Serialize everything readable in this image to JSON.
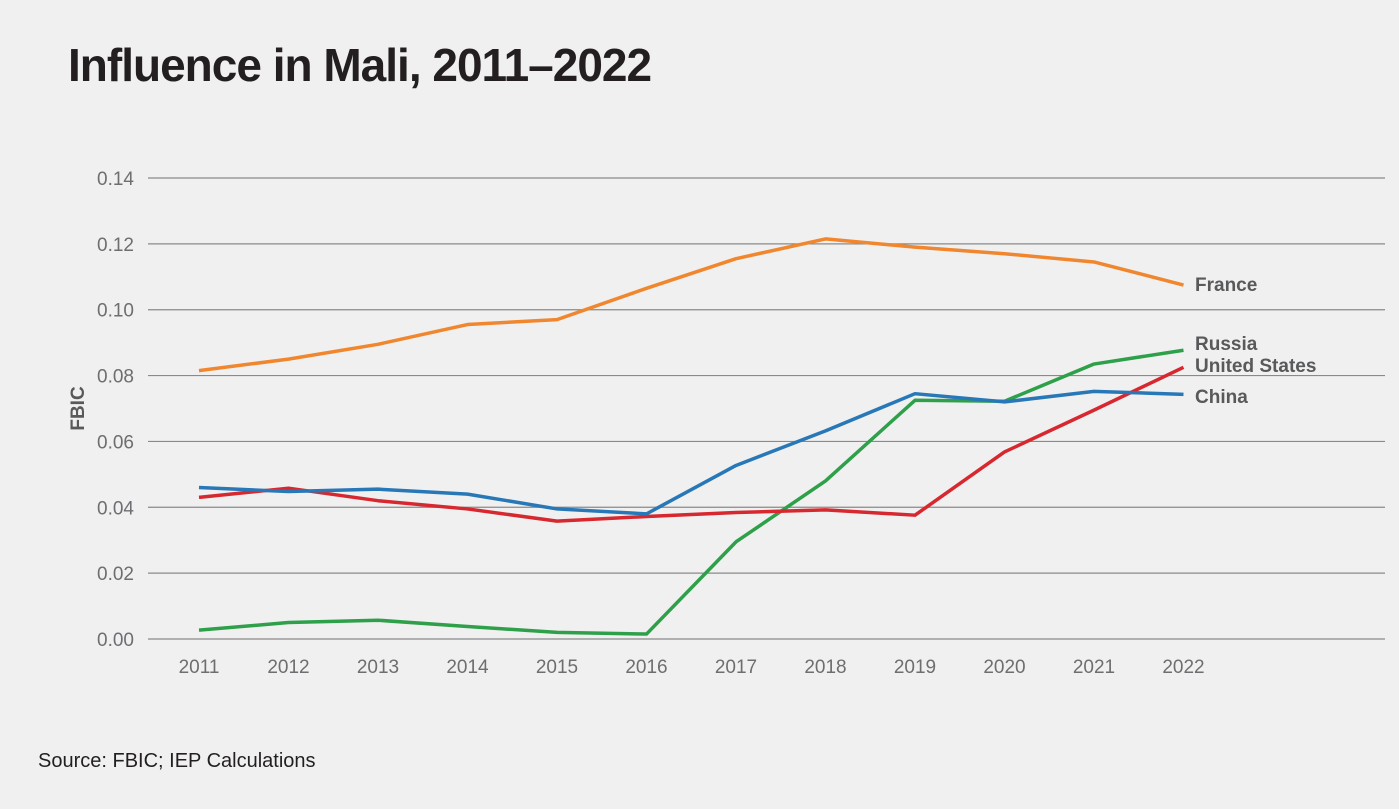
{
  "title": "Influence in Mali, 2011–2022",
  "source": "Source: FBIC; IEP Calculations",
  "chart_data": {
    "type": "line",
    "title": "Influence in Mali, 2011–2022",
    "xlabel": "",
    "ylabel": "FBIC",
    "ylim": [
      0,
      0.14
    ],
    "yticks": [
      "0.00",
      "0.02",
      "0.04",
      "0.06",
      "0.08",
      "0.10",
      "0.12",
      "0.14"
    ],
    "x": [
      "2011",
      "2012",
      "2013",
      "2014",
      "2015",
      "2016",
      "2017",
      "2018",
      "2019",
      "2020",
      "2021",
      "2022"
    ],
    "grid": true,
    "legend": "inline-right",
    "series": [
      {
        "name": "France",
        "color": "#f0872f",
        "values": [
          0.0815,
          0.085,
          0.0895,
          0.0955,
          0.097,
          0.1065,
          0.1155,
          0.1215,
          0.119,
          0.117,
          0.1145,
          0.1075
        ]
      },
      {
        "name": "Russia",
        "color": "#2ea04a",
        "values": [
          0.0027,
          0.005,
          0.0057,
          0.0038,
          0.002,
          0.0015,
          0.0295,
          0.048,
          0.0725,
          0.0722,
          0.0835,
          0.0877
        ]
      },
      {
        "name": "United States",
        "color": "#d7282f",
        "values": [
          0.043,
          0.0458,
          0.042,
          0.0395,
          0.0358,
          0.0372,
          0.0384,
          0.0392,
          0.0376,
          0.0568,
          0.0695,
          0.0825
        ]
      },
      {
        "name": "China",
        "color": "#2878b8",
        "values": [
          0.046,
          0.0448,
          0.0455,
          0.044,
          0.0395,
          0.038,
          0.0527,
          0.0632,
          0.0745,
          0.072,
          0.0752,
          0.0743
        ]
      }
    ]
  }
}
